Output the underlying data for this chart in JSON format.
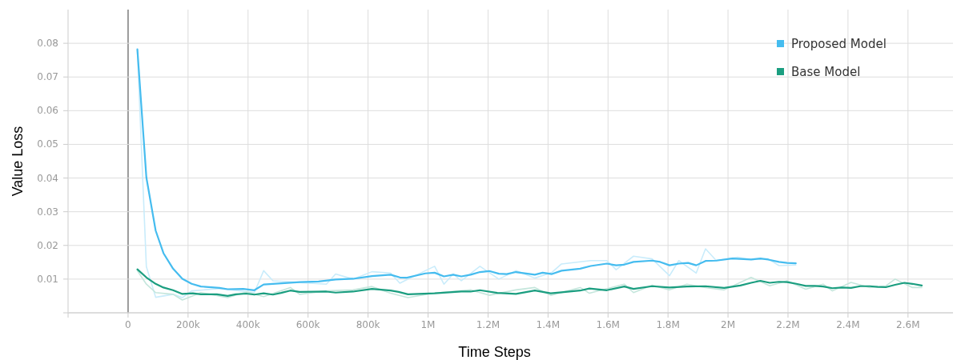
{
  "chart_data": {
    "type": "line",
    "xlabel": "Time Steps",
    "ylabel": "Value Loss",
    "xlim": [
      -200000,
      2750000
    ],
    "ylim": [
      0,
      0.09
    ],
    "xticks": [
      {
        "value": -200000,
        "label": null
      },
      0,
      {
        "value": 200000,
        "label": "200k"
      },
      {
        "value": 400000,
        "label": "400k"
      },
      {
        "value": 600000,
        "label": "600k"
      },
      {
        "value": 800000,
        "label": "800k"
      },
      {
        "value": 1000000,
        "label": "1M"
      },
      {
        "value": 1200000,
        "label": "1.2M"
      },
      {
        "value": 1400000,
        "label": "1.4M"
      },
      {
        "value": 1600000,
        "label": "1.6M"
      },
      {
        "value": 1800000,
        "label": "1.8M"
      },
      {
        "value": 2000000,
        "label": "2M"
      },
      {
        "value": 2200000,
        "label": "2.2M"
      },
      {
        "value": 2400000,
        "label": "2.4M"
      },
      {
        "value": 2600000,
        "label": "2.6M"
      }
    ],
    "yticks": [
      {
        "value": 0,
        "label": null
      },
      0.01,
      0.02,
      0.03,
      0.04,
      0.05,
      0.06,
      0.07,
      0.08
    ],
    "grid": true,
    "legend": "top right",
    "marker": "none",
    "line_style": "solid",
    "series": [
      {
        "color": "#c9ecfb",
        "x": [
          31000,
          61000,
          92000,
          150000,
          181000,
          212000,
          305000,
          421000,
          452000,
          483000,
          572000,
          661000,
          692000,
          750000,
          813000,
          875000,
          906000,
          991000,
          1022000,
          1053000,
          1084000,
          1111000,
          1173000,
          1236000,
          1293000,
          1356000,
          1413000,
          1445000,
          1542000,
          1596000,
          1627000,
          1685000,
          1747000,
          1805000,
          1836000,
          1894000,
          1925000,
          1961000,
          2032000,
          2077000,
          2134000,
          2170000,
          2226000
        ],
        "values": [
          0.078,
          0.0137,
          0.0046,
          0.0055,
          0.0045,
          0.0065,
          0.0072,
          0.006,
          0.0125,
          0.0095,
          0.009,
          0.0085,
          0.0115,
          0.01,
          0.0122,
          0.0118,
          0.0088,
          0.0125,
          0.0138,
          0.0085,
          0.0115,
          0.0095,
          0.0138,
          0.01,
          0.0125,
          0.0103,
          0.012,
          0.0145,
          0.0155,
          0.0155,
          0.0128,
          0.0168,
          0.016,
          0.011,
          0.0155,
          0.0118,
          0.019,
          0.0155,
          0.0165,
          0.0158,
          0.016,
          0.014,
          0.0142
        ]
      },
      {
        "color": "#c4e6dc",
        "x": [
          31000,
          61000,
          92000,
          150000,
          181000,
          243000,
          332000,
          394000,
          452000,
          541000,
          572000,
          661000,
          750000,
          813000,
          875000,
          933000,
          1017000,
          1142000,
          1204000,
          1293000,
          1356000,
          1409000,
          1507000,
          1538000,
          1654000,
          1685000,
          1747000,
          1805000,
          1863000,
          1925000,
          1987000,
          2077000,
          2139000,
          2197000,
          2259000,
          2317000,
          2348000,
          2410000,
          2473000,
          2526000,
          2557000,
          2615000,
          2646000
        ],
        "values": [
          0.0125,
          0.0085,
          0.006,
          0.0055,
          0.0038,
          0.006,
          0.0045,
          0.0062,
          0.0048,
          0.0075,
          0.0055,
          0.0065,
          0.0068,
          0.0078,
          0.0058,
          0.0045,
          0.0058,
          0.0068,
          0.0052,
          0.0068,
          0.0075,
          0.0052,
          0.0075,
          0.0058,
          0.0085,
          0.006,
          0.0082,
          0.0068,
          0.0085,
          0.0075,
          0.0068,
          0.0105,
          0.008,
          0.0095,
          0.007,
          0.0085,
          0.0065,
          0.009,
          0.0075,
          0.008,
          0.01,
          0.0075,
          0.0075
        ]
      },
      {
        "name": "Proposed Model",
        "color": "#45bcef",
        "x": [
          31000,
          61000,
          92000,
          118000,
          150000,
          181000,
          212000,
          243000,
          305000,
          332000,
          384000,
          421000,
          452000,
          572000,
          635000,
          692000,
          750000,
          813000,
          875000,
          906000,
          928000,
          991000,
          1022000,
          1053000,
          1084000,
          1111000,
          1142000,
          1173000,
          1204000,
          1236000,
          1262000,
          1293000,
          1356000,
          1382000,
          1413000,
          1445000,
          1507000,
          1542000,
          1596000,
          1627000,
          1654000,
          1685000,
          1747000,
          1774000,
          1805000,
          1836000,
          1867000,
          1894000,
          1925000,
          1961000,
          2014000,
          2077000,
          2108000,
          2134000,
          2170000,
          2197000,
          2226000
        ],
        "values": [
          0.0782,
          0.0402,
          0.0244,
          0.0177,
          0.0131,
          0.0101,
          0.0086,
          0.0078,
          0.0074,
          0.007,
          0.0071,
          0.0067,
          0.0084,
          0.0091,
          0.0093,
          0.0099,
          0.0101,
          0.0109,
          0.0113,
          0.0105,
          0.0104,
          0.0117,
          0.0119,
          0.0108,
          0.0113,
          0.0108,
          0.0113,
          0.0121,
          0.0124,
          0.0116,
          0.0115,
          0.0121,
          0.0113,
          0.0119,
          0.0115,
          0.0125,
          0.0131,
          0.0139,
          0.0146,
          0.0141,
          0.0143,
          0.0151,
          0.0155,
          0.0151,
          0.0141,
          0.0146,
          0.0148,
          0.0141,
          0.0154,
          0.0155,
          0.0161,
          0.0158,
          0.0161,
          0.0158,
          0.0151,
          0.0148,
          0.0147
        ]
      },
      {
        "name": "Base Model",
        "color": "#1b9e80",
        "x": [
          31000,
          61000,
          92000,
          118000,
          150000,
          181000,
          216000,
          243000,
          296000,
          332000,
          359000,
          394000,
          421000,
          452000,
          483000,
          510000,
          541000,
          572000,
          661000,
          692000,
          750000,
          813000,
          875000,
          902000,
          933000,
          1022000,
          1111000,
          1142000,
          1173000,
          1231000,
          1293000,
          1356000,
          1409000,
          1445000,
          1507000,
          1538000,
          1596000,
          1654000,
          1685000,
          1747000,
          1805000,
          1863000,
          1925000,
          1987000,
          2041000,
          2077000,
          2108000,
          2139000,
          2170000,
          2197000,
          2228000,
          2259000,
          2290000,
          2317000,
          2348000,
          2379000,
          2410000,
          2441000,
          2473000,
          2499000,
          2526000,
          2557000,
          2588000,
          2615000,
          2646000
        ],
        "values": [
          0.0129,
          0.0105,
          0.0086,
          0.0075,
          0.0067,
          0.0056,
          0.0058,
          0.0055,
          0.0055,
          0.005,
          0.0055,
          0.0057,
          0.0054,
          0.0058,
          0.0054,
          0.0059,
          0.0066,
          0.0062,
          0.0063,
          0.006,
          0.0063,
          0.0071,
          0.0066,
          0.0062,
          0.0055,
          0.0058,
          0.0063,
          0.0063,
          0.0067,
          0.0059,
          0.0056,
          0.0066,
          0.0058,
          0.0061,
          0.0066,
          0.0072,
          0.0067,
          0.0078,
          0.0071,
          0.0079,
          0.0075,
          0.0078,
          0.0079,
          0.0074,
          0.0081,
          0.0089,
          0.0095,
          0.0089,
          0.0092,
          0.0091,
          0.0086,
          0.008,
          0.008,
          0.0078,
          0.0073,
          0.0075,
          0.0074,
          0.0079,
          0.0079,
          0.0077,
          0.0076,
          0.0083,
          0.0089,
          0.0086,
          0.0081
        ]
      }
    ]
  }
}
